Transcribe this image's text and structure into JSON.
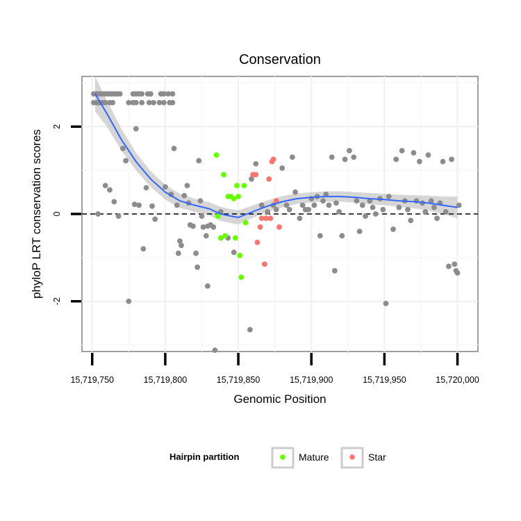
{
  "chart_data": {
    "type": "scatter",
    "title": "Conservation",
    "xlabel": "Genomic Position",
    "ylabel": "phyloP LRT conservation scores",
    "xlim": [
      15719743,
      15720014
    ],
    "ylim": [
      -3.15,
      3.15
    ],
    "x_ticks": [
      15719750,
      15719800,
      15719850,
      15719900,
      15719950,
      15720000
    ],
    "x_tick_labels": [
      "15,719,750",
      "15,719,800",
      "15,719,850",
      "15,719,900",
      "15,719,950",
      "15,720,000"
    ],
    "y_ticks": [
      -2,
      0,
      2
    ],
    "y_tick_labels": [
      "-2",
      "0",
      "2"
    ],
    "reference_line": {
      "y": 0,
      "style": "dashed"
    },
    "legend": {
      "title": "Hairpin partition",
      "position": "bottom",
      "entries": [
        {
          "label": "Mature",
          "color": "#66ff00"
        },
        {
          "label": "Star",
          "color": "#f8766d"
        }
      ]
    },
    "colors": {
      "other": "#8c8c8c",
      "mature": "#66ff00",
      "star": "#f8766d",
      "smooth": "#3366ff",
      "ribbon": "#c8c8c8"
    },
    "series": [
      {
        "name": "Other",
        "points": [
          [
            15719751,
            2.75
          ],
          [
            15719753,
            2.75
          ],
          [
            15719755,
            2.75
          ],
          [
            15719757,
            2.75
          ],
          [
            15719759,
            2.75
          ],
          [
            15719761,
            2.75
          ],
          [
            15719763,
            2.75
          ],
          [
            15719765,
            2.75
          ],
          [
            15719767,
            2.75
          ],
          [
            15719769,
            2.75
          ],
          [
            15719751,
            2.55
          ],
          [
            15719753,
            2.55
          ],
          [
            15719755,
            2.55
          ],
          [
            15719757,
            2.55
          ],
          [
            15719759,
            2.55
          ],
          [
            15719762,
            2.55
          ],
          [
            15719764,
            2.55
          ],
          [
            15719778,
            2.75
          ],
          [
            15719780,
            2.75
          ],
          [
            15719782,
            2.75
          ],
          [
            15719784,
            2.75
          ],
          [
            15719788,
            2.75
          ],
          [
            15719790,
            2.75
          ],
          [
            15719797,
            2.75
          ],
          [
            15719799,
            2.75
          ],
          [
            15719802,
            2.75
          ],
          [
            15719805,
            2.75
          ],
          [
            15719775,
            2.55
          ],
          [
            15719778,
            2.55
          ],
          [
            15719780,
            2.55
          ],
          [
            15719784,
            2.55
          ],
          [
            15719789,
            2.55
          ],
          [
            15719792,
            2.55
          ],
          [
            15719796,
            2.55
          ],
          [
            15719799,
            2.55
          ],
          [
            15719803,
            2.55
          ],
          [
            15719805,
            2.55
          ],
          [
            15719771,
            1.5
          ],
          [
            15719773,
            1.22
          ],
          [
            15719780,
            1.95
          ],
          [
            15719806,
            1.5
          ],
          [
            15719823,
            1.22
          ],
          [
            15719759,
            0.65
          ],
          [
            15719762,
            0.55
          ],
          [
            15719765,
            0.28
          ],
          [
            15719768,
            -0.05
          ],
          [
            15719754,
            0.0
          ],
          [
            15719779,
            0.22
          ],
          [
            15719782,
            0.2
          ],
          [
            15719787,
            0.6
          ],
          [
            15719791,
            0.18
          ],
          [
            15719793,
            -0.12
          ],
          [
            15719800,
            0.62
          ],
          [
            15719804,
            0.45
          ],
          [
            15719808,
            0.2
          ],
          [
            15719810,
            -0.62
          ],
          [
            15719811,
            -0.72
          ],
          [
            15719809,
            -0.9
          ],
          [
            15719815,
            0.65
          ],
          [
            15719813,
            0.42
          ],
          [
            15719816,
            0.25
          ],
          [
            15719817,
            -0.25
          ],
          [
            15719819,
            -0.28
          ],
          [
            15719821,
            -0.9
          ],
          [
            15719822,
            -1.22
          ],
          [
            15719824,
            0.3
          ],
          [
            15719825,
            -0.05
          ],
          [
            15719826,
            -0.3
          ],
          [
            15719828,
            -0.5
          ],
          [
            15719829,
            -0.28
          ],
          [
            15719831,
            -0.25
          ],
          [
            15719833,
            -0.3
          ],
          [
            15719829,
            -1.65
          ],
          [
            15719834,
            -3.12
          ],
          [
            15719838,
            0.05
          ],
          [
            15719843,
            -0.55
          ],
          [
            15719847,
            -0.88
          ],
          [
            15719775,
            -2.0
          ],
          [
            15719785,
            -0.8
          ],
          [
            15719858,
            -2.65
          ],
          [
            15719859,
            0.8
          ],
          [
            15719862,
            1.15
          ],
          [
            15719866,
            0.2
          ],
          [
            15719870,
            0.05
          ],
          [
            15719874,
            0.2
          ],
          [
            15719876,
            0.1
          ],
          [
            15719880,
            1.05
          ],
          [
            15719883,
            0.2
          ],
          [
            15719885,
            0.1
          ],
          [
            15719887,
            1.3
          ],
          [
            15719889,
            0.5
          ],
          [
            15719892,
            -0.1
          ],
          [
            15719894,
            0.2
          ],
          [
            15719896,
            0.1
          ],
          [
            15719898,
            0.1
          ],
          [
            15719900,
            0.35
          ],
          [
            15719902,
            0.2
          ],
          [
            15719904,
            0.4
          ],
          [
            15719906,
            -0.5
          ],
          [
            15719908,
            0.3
          ],
          [
            15719910,
            0.45
          ],
          [
            15719912,
            0.2
          ],
          [
            15719914,
            1.3
          ],
          [
            15719916,
            -1.3
          ],
          [
            15719917,
            0.25
          ],
          [
            15719919,
            0.05
          ],
          [
            15719921,
            -0.5
          ],
          [
            15719923,
            1.25
          ],
          [
            15719926,
            1.45
          ],
          [
            15719929,
            1.3
          ],
          [
            15719931,
            0.3
          ],
          [
            15719933,
            -0.4
          ],
          [
            15719935,
            0.2
          ],
          [
            15719937,
            -0.05
          ],
          [
            15719940,
            0.3
          ],
          [
            15719942,
            0.15
          ],
          [
            15719944,
            0.0
          ],
          [
            15719947,
            0.35
          ],
          [
            15719949,
            0.1
          ],
          [
            15719951,
            -2.05
          ],
          [
            15719953,
            0.4
          ],
          [
            15719956,
            -0.35
          ],
          [
            15719958,
            1.25
          ],
          [
            15719960,
            0.15
          ],
          [
            15719962,
            1.45
          ],
          [
            15719964,
            0.3
          ],
          [
            15719966,
            0.1
          ],
          [
            15719968,
            -0.15
          ],
          [
            15719970,
            1.4
          ],
          [
            15719972,
            0.3
          ],
          [
            15719974,
            1.2
          ],
          [
            15719976,
            0.25
          ],
          [
            15719978,
            0.05
          ],
          [
            15719980,
            1.35
          ],
          [
            15719982,
            0.3
          ],
          [
            15719984,
            0.15
          ],
          [
            15719986,
            -0.1
          ],
          [
            15719988,
            0.25
          ],
          [
            15719990,
            1.2
          ],
          [
            15719992,
            0.05
          ],
          [
            15719994,
            -1.2
          ],
          [
            15719996,
            1.25
          ],
          [
            15719998,
            -1.15
          ],
          [
            15719999,
            -1.3
          ],
          [
            15720000,
            -1.35
          ],
          [
            15720001,
            0.2
          ]
        ]
      },
      {
        "name": "Mature",
        "points": [
          [
            15719835,
            1.35
          ],
          [
            15719836,
            -0.05
          ],
          [
            15719838,
            -0.55
          ],
          [
            15719840,
            0.9
          ],
          [
            15719841,
            -0.5
          ],
          [
            15719843,
            0.4
          ],
          [
            15719845,
            0.4
          ],
          [
            15719847,
            0.35
          ],
          [
            15719848,
            -0.55
          ],
          [
            15719849,
            0.65
          ],
          [
            15719850,
            0.4
          ],
          [
            15719851,
            -0.95
          ],
          [
            15719852,
            -1.45
          ],
          [
            15719854,
            0.65
          ],
          [
            15719855,
            -0.2
          ]
        ]
      },
      {
        "name": "Star",
        "points": [
          [
            15719860,
            0.9
          ],
          [
            15719862,
            0.9
          ],
          [
            15719863,
            -0.65
          ],
          [
            15719865,
            -0.3
          ],
          [
            15719866,
            -0.1
          ],
          [
            15719868,
            -1.15
          ],
          [
            15719869,
            -0.1
          ],
          [
            15719871,
            0.8
          ],
          [
            15719872,
            -0.1
          ],
          [
            15719873,
            1.2
          ],
          [
            15719874,
            1.25
          ],
          [
            15719876,
            0.3
          ],
          [
            15719878,
            -0.3
          ]
        ]
      },
      {
        "name": "Smooth fit",
        "type": "line",
        "points": [
          [
            15719752,
            2.75
          ],
          [
            15719760,
            2.3
          ],
          [
            15719770,
            1.7
          ],
          [
            15719780,
            1.2
          ],
          [
            15719790,
            0.8
          ],
          [
            15719800,
            0.5
          ],
          [
            15719810,
            0.3
          ],
          [
            15719820,
            0.2
          ],
          [
            15719830,
            0.12
          ],
          [
            15719838,
            0.0
          ],
          [
            15719845,
            -0.05
          ],
          [
            15719850,
            -0.08
          ],
          [
            15719856,
            0.0
          ],
          [
            15719862,
            0.08
          ],
          [
            15719870,
            0.18
          ],
          [
            15719880,
            0.28
          ],
          [
            15719890,
            0.35
          ],
          [
            15719900,
            0.38
          ],
          [
            15719910,
            0.4
          ],
          [
            15719920,
            0.4
          ],
          [
            15719930,
            0.38
          ],
          [
            15719940,
            0.35
          ],
          [
            15719950,
            0.33
          ],
          [
            15719960,
            0.3
          ],
          [
            15719970,
            0.28
          ],
          [
            15719980,
            0.25
          ],
          [
            15719990,
            0.2
          ],
          [
            15720000,
            0.15
          ]
        ],
        "se": [
          0.4,
          0.3,
          0.25,
          0.2,
          0.18,
          0.17,
          0.16,
          0.15,
          0.15,
          0.16,
          0.16,
          0.16,
          0.15,
          0.14,
          0.13,
          0.13,
          0.12,
          0.12,
          0.12,
          0.12,
          0.12,
          0.13,
          0.13,
          0.14,
          0.15,
          0.17,
          0.2,
          0.25
        ]
      }
    ]
  }
}
